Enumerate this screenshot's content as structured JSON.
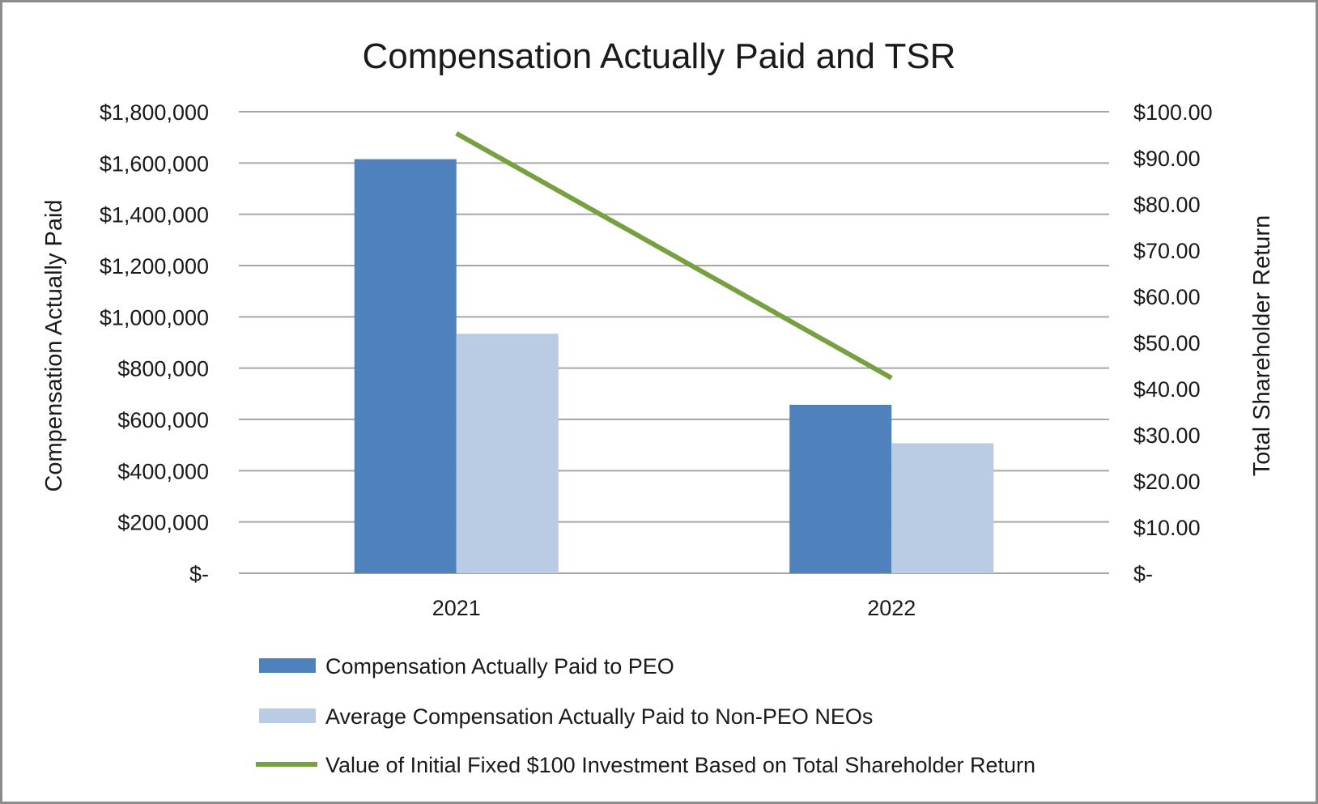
{
  "chart_data": {
    "type": "bar",
    "title": "Compensation Actually Paid and TSR",
    "categories": [
      "2021",
      "2022"
    ],
    "ylabel": "Compensation Actually Paid",
    "y2label": "Total Shareholder Return",
    "ylim": [
      0,
      1800000
    ],
    "y2lim": [
      0,
      100
    ],
    "grid": true,
    "legend_position": "bottom",
    "yticks": [
      "$1,800,000",
      "$1,600,000",
      "$1,400,000",
      "$1,200,000",
      "$1,000,000",
      "$800,000",
      "$600,000",
      "$400,000",
      "$200,000",
      "$-"
    ],
    "y2ticks": [
      "$100.00",
      "$90.00",
      "$80.00",
      "$70.00",
      "$60.00",
      "$50.00",
      "$40.00",
      "$30.00",
      "$20.00",
      "$10.00",
      "$-"
    ],
    "series": [
      {
        "name": "Compensation Actually Paid to PEO",
        "kind": "bar",
        "axis": "left",
        "color": "#4f81bd",
        "values": [
          1615000,
          657000
        ]
      },
      {
        "name": "Average Compensation Actually Paid to Non-PEO NEOs",
        "kind": "bar",
        "axis": "left",
        "color": "#b9cce4",
        "values": [
          934000,
          507000
        ]
      },
      {
        "name": "Value of Initial Fixed $100 Investment Based on Total Shareholder Return",
        "kind": "line",
        "axis": "right",
        "color": "#77a041",
        "values": [
          95.3,
          42.3
        ]
      }
    ]
  }
}
